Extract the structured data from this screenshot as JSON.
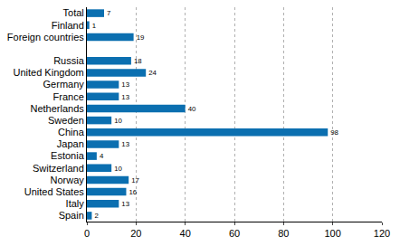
{
  "chart_data": {
    "type": "bar",
    "orientation": "horizontal",
    "categories": [
      "Total",
      "Finland",
      "Foreign countries",
      null,
      "Russia",
      "United Kingdom",
      "Germany",
      "France",
      "Netherlands",
      "Sweden",
      "China",
      "Japan",
      "Estonia",
      "Switzerland",
      "Norway",
      "United States",
      "Italy",
      "Spain"
    ],
    "values": [
      7,
      1,
      19,
      null,
      18,
      24,
      13,
      13,
      40,
      10,
      98,
      13,
      4,
      10,
      17,
      16,
      13,
      2
    ],
    "color": "#0b6fb0",
    "xlim": [
      0,
      120
    ],
    "xticks": [
      0,
      20,
      40,
      60,
      80,
      100,
      120
    ],
    "grid": true,
    "data_labels": true
  }
}
